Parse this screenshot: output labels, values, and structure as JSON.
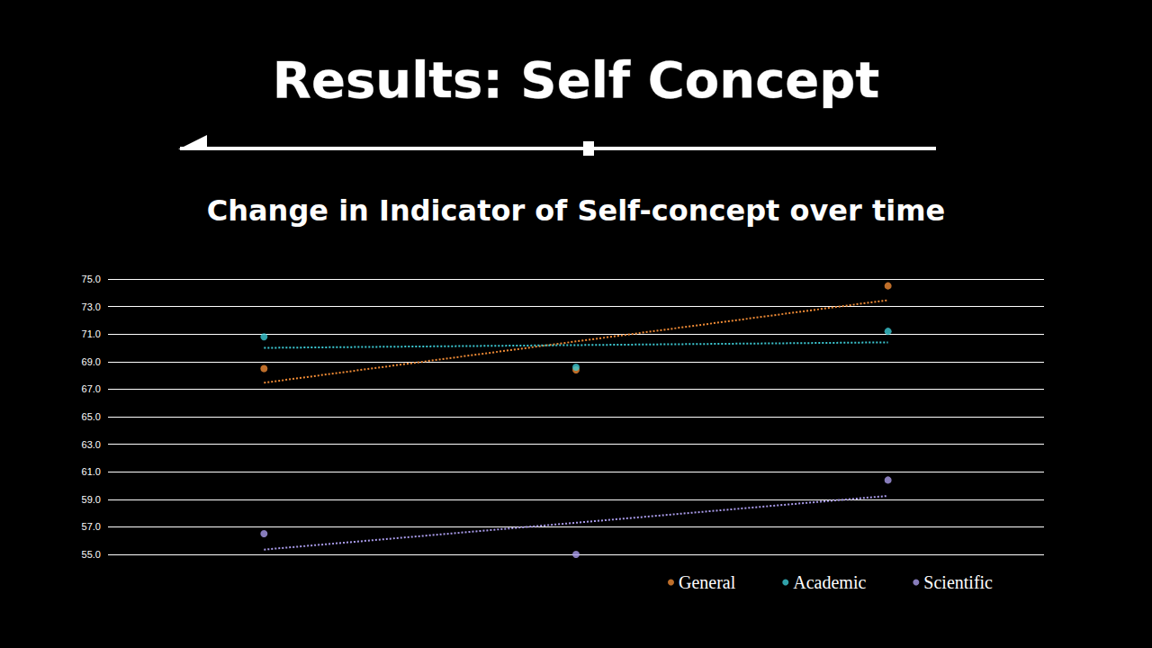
{
  "chart_data": {
    "type": "scatter",
    "title": "Results: Self Concept",
    "subtitle": "Change in Indicator of Self-concept over time",
    "categories": [
      null,
      null,
      null
    ],
    "series": [
      {
        "name": "General",
        "color": "#ee8a35",
        "marker": "circle",
        "line_style": "dotted",
        "values": [
          68.5,
          68.4,
          74.5
        ]
      },
      {
        "name": "Academic",
        "color": "#3cc9d3",
        "marker": "circle",
        "line_style": "dotted",
        "values": [
          70.8,
          68.6,
          71.2
        ]
      },
      {
        "name": "Scientific",
        "color": "#a99bea",
        "marker": "circle",
        "line_style": "dotted",
        "values": [
          56.5,
          55.0,
          60.4
        ]
      }
    ],
    "ylim": [
      55,
      75
    ],
    "yticks": [
      {
        "value": 55,
        "label": "55.0"
      },
      {
        "value": 57,
        "label": "57.0"
      },
      {
        "value": 59,
        "label": "59.0"
      },
      {
        "value": 61,
        "label": "61.0"
      },
      {
        "value": 63,
        "label": "63.0"
      },
      {
        "value": 65,
        "label": "65.0"
      },
      {
        "value": 67,
        "label": "67.0"
      },
      {
        "value": 69,
        "label": "69.0"
      },
      {
        "value": 71,
        "label": "71.0"
      },
      {
        "value": 73,
        "label": "73.0"
      },
      {
        "value": 75,
        "label": "75.0"
      }
    ],
    "grid": true,
    "legend": "lower right",
    "tick_labels": "y"
  }
}
